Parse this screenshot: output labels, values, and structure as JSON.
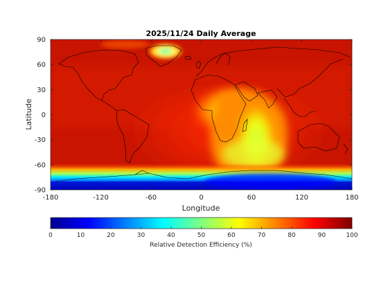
{
  "map": {
    "title": "2025/11/24 Daily Average",
    "xlabel": "Longitude",
    "ylabel": "Latitude",
    "colormap": "jet",
    "x_ticks": [
      "-180",
      "-120",
      "-60",
      "0",
      "60",
      "120",
      "180"
    ],
    "y_ticks": [
      "90",
      "60",
      "30",
      "0",
      "-30",
      "-60",
      "-90"
    ],
    "xlim": [
      -180,
      180
    ],
    "ylim": [
      -90,
      90
    ]
  },
  "colorbar": {
    "label": "Relative Detection Efficiency (%)",
    "ticks": [
      "0",
      "10",
      "20",
      "30",
      "40",
      "50",
      "60",
      "70",
      "80",
      "90",
      "100"
    ],
    "range": [
      0,
      100
    ],
    "colors": [
      "#00008f",
      "#0000ff",
      "#00ffff",
      "#ffff00",
      "#ff0000",
      "#800000"
    ]
  }
}
